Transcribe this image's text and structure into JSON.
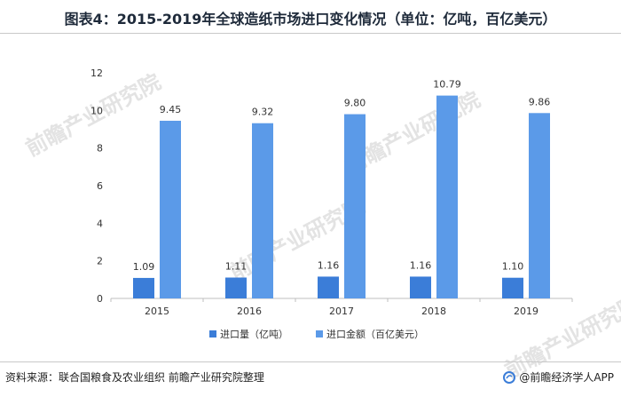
{
  "title": "图表4：2015-2019年全球造纸市场进口变化情况（单位：亿吨，百亿美元）",
  "colors": {
    "import_volume": "#3b7dd8",
    "import_value": "#5b9ae8",
    "text": "#333333",
    "axis": "#bfbfbf"
  },
  "chart_data": {
    "type": "bar",
    "categories": [
      "2015",
      "2016",
      "2017",
      "2018",
      "2019"
    ],
    "series": [
      {
        "name": "进口量（亿吨）",
        "values": [
          1.09,
          1.11,
          1.16,
          1.16,
          1.1
        ],
        "labels": [
          "1.09",
          "1.11",
          "1.16",
          "1.16",
          "1.10"
        ]
      },
      {
        "name": "进口金额（百亿美元）",
        "values": [
          9.45,
          9.32,
          9.8,
          10.79,
          9.86
        ],
        "labels": [
          "9.45",
          "9.32",
          "9.80",
          "10.79",
          "9.86"
        ]
      }
    ],
    "yticks": [
      "0",
      "2",
      "4",
      "6",
      "8",
      "10",
      "12"
    ],
    "ylim": [
      0,
      12
    ],
    "grid": false,
    "legend_position": "bottom-center"
  },
  "watermark": "前瞻产业研究院",
  "footer": {
    "source": "资料来源：联合国粮食及农业组织 前瞻产业研究院整理",
    "brand": "@前瞻经济学人APP"
  }
}
